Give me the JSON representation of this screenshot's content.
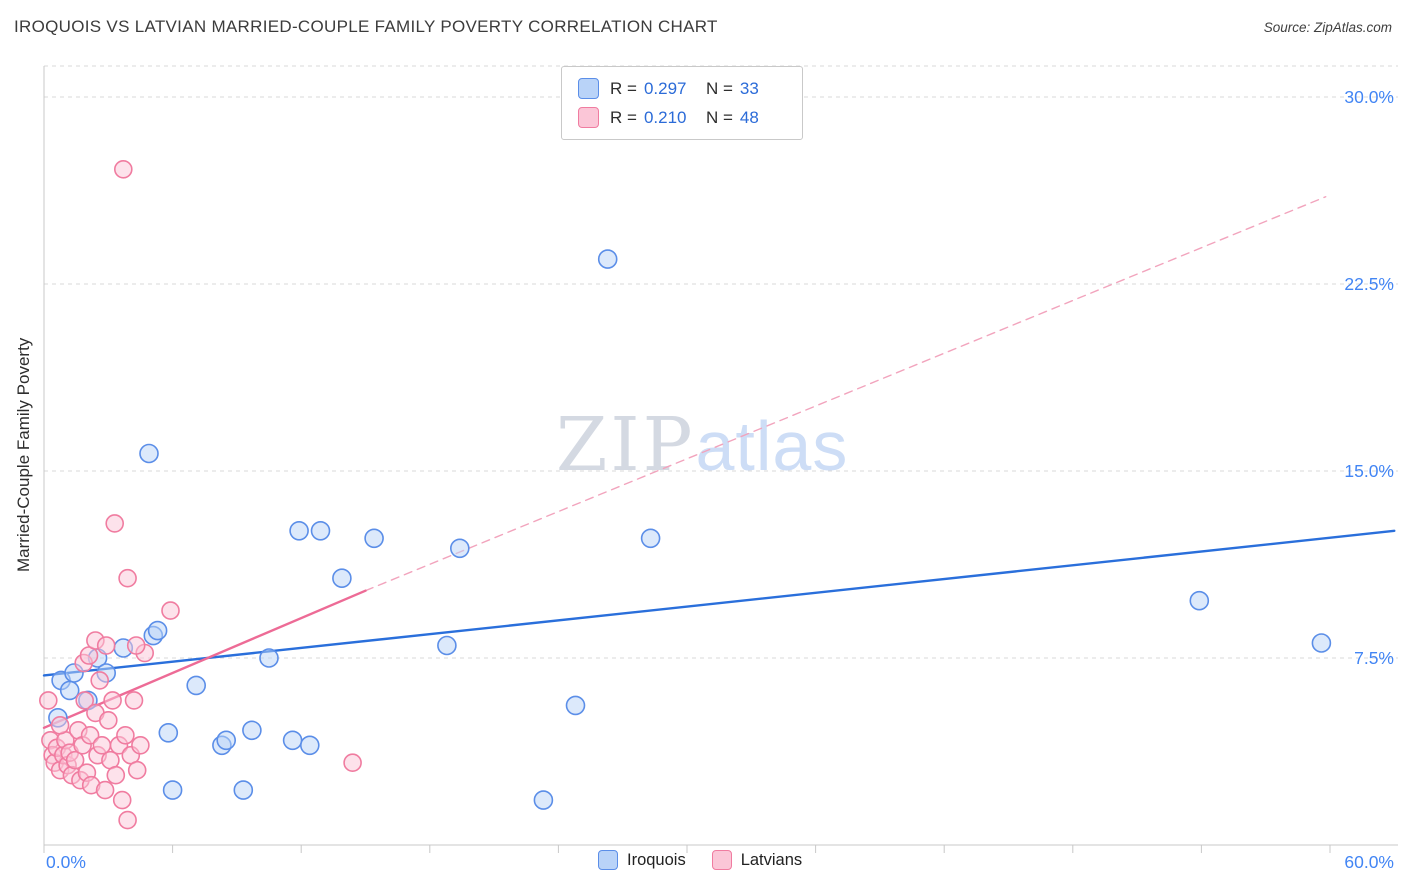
{
  "header": {
    "title": "IROQUOIS VS LATVIAN MARRIED-COUPLE FAMILY POVERTY CORRELATION CHART",
    "source": "Source: ZipAtlas.com"
  },
  "legend_box": {
    "rows": [
      {
        "r_label": "R =",
        "r_value": "0.297",
        "n_label": "N =",
        "n_value": "33"
      },
      {
        "r_label": "R =",
        "r_value": "0.210",
        "n_label": "N =",
        "n_value": "48"
      }
    ]
  },
  "watermark": {
    "part1": "ZIP",
    "part2": "atlas"
  },
  "bottom_legend": {
    "items": [
      {
        "label": "Iroquois"
      },
      {
        "label": "Latvians"
      }
    ]
  },
  "colors": {
    "accent_blue": "#4285f4",
    "value_blue": "#2b6bd8",
    "grid": "#d9d9d9",
    "axis": "#c8c8c8"
  },
  "chart_data": {
    "type": "scatter",
    "title": "IROQUOIS VS LATVIAN MARRIED-COUPLE FAMILY POVERTY CORRELATION CHART",
    "xlabel": "",
    "ylabel": "Married-Couple Family Poverty",
    "xlim": [
      0,
      63
    ],
    "ylim": [
      0,
      31.2
    ],
    "x_tick_step": 6,
    "grid": "dashed-horizontal",
    "legend_position": "bottom-center",
    "x_ticks": [
      {
        "value": 0,
        "label": "0.0%"
      },
      {
        "value": 60,
        "label": "60.0%"
      }
    ],
    "y_ticks": [
      {
        "value": 30,
        "label": "30.0%"
      },
      {
        "value": 22.5,
        "label": "22.5%"
      },
      {
        "value": 15,
        "label": "15.0%"
      },
      {
        "value": 7.5,
        "label": "7.5%"
      }
    ],
    "series": [
      {
        "name": "Iroquois",
        "R": 0.297,
        "N": 33,
        "fill": "#b9d3f8",
        "stroke": "#5b8ee8",
        "radius": 9,
        "points": [
          [
            0.65,
            5.1
          ],
          [
            0.8,
            6.6
          ],
          [
            1.2,
            6.2
          ],
          [
            1.4,
            6.9
          ],
          [
            2.05,
            5.8
          ],
          [
            2.5,
            7.5
          ],
          [
            2.9,
            6.9
          ],
          [
            3.7,
            7.9
          ],
          [
            4.9,
            15.7
          ],
          [
            5.1,
            8.4
          ],
          [
            5.3,
            8.6
          ],
          [
            5.8,
            4.5
          ],
          [
            6.0,
            2.2
          ],
          [
            7.1,
            6.4
          ],
          [
            8.3,
            4.0
          ],
          [
            8.5,
            4.2
          ],
          [
            9.3,
            2.2
          ],
          [
            9.7,
            4.6
          ],
          [
            10.5,
            7.5
          ],
          [
            11.6,
            4.2
          ],
          [
            11.9,
            12.6
          ],
          [
            12.4,
            4.0
          ],
          [
            12.9,
            12.6
          ],
          [
            13.9,
            10.7
          ],
          [
            15.4,
            12.3
          ],
          [
            18.8,
            8.0
          ],
          [
            19.4,
            11.9
          ],
          [
            23.3,
            1.8
          ],
          [
            24.8,
            5.6
          ],
          [
            26.3,
            23.5
          ],
          [
            28.3,
            12.3
          ],
          [
            53.9,
            9.8
          ],
          [
            59.6,
            8.1
          ]
        ],
        "trend": {
          "points": [
            [
              0,
              6.8
            ],
            [
              63,
              12.6
            ]
          ],
          "dashed": false,
          "color": "#2a6fdb"
        }
      },
      {
        "name": "Latvians",
        "R": 0.21,
        "N": 48,
        "fill": "#fbc6d7",
        "stroke": "#f07ca0",
        "radius": 8.5,
        "points": [
          [
            3.7,
            27.1
          ],
          [
            3.3,
            12.9
          ],
          [
            3.9,
            10.7
          ],
          [
            5.9,
            9.4
          ],
          [
            4.7,
            7.7
          ],
          [
            14.4,
            3.3
          ],
          [
            0.2,
            5.8
          ],
          [
            0.3,
            4.2
          ],
          [
            0.4,
            3.6
          ],
          [
            0.5,
            3.3
          ],
          [
            0.6,
            3.9
          ],
          [
            0.75,
            3.0
          ],
          [
            0.9,
            3.6
          ],
          [
            1.0,
            4.2
          ],
          [
            1.1,
            3.2
          ],
          [
            1.2,
            3.7
          ],
          [
            1.3,
            2.8
          ],
          [
            1.45,
            3.4
          ],
          [
            1.6,
            4.6
          ],
          [
            1.7,
            2.6
          ],
          [
            1.8,
            4.0
          ],
          [
            1.85,
            7.3
          ],
          [
            1.9,
            5.8
          ],
          [
            2.0,
            2.9
          ],
          [
            2.1,
            7.6
          ],
          [
            2.15,
            4.4
          ],
          [
            2.2,
            2.4
          ],
          [
            2.4,
            8.2
          ],
          [
            2.4,
            5.3
          ],
          [
            2.5,
            3.6
          ],
          [
            2.6,
            6.6
          ],
          [
            2.7,
            4.0
          ],
          [
            2.85,
            2.2
          ],
          [
            3.0,
            5.0
          ],
          [
            3.1,
            3.4
          ],
          [
            3.2,
            5.8
          ],
          [
            3.35,
            2.8
          ],
          [
            3.5,
            4.0
          ],
          [
            3.65,
            1.8
          ],
          [
            3.8,
            4.4
          ],
          [
            3.9,
            1.0
          ],
          [
            4.05,
            3.6
          ],
          [
            4.2,
            5.8
          ],
          [
            4.35,
            3.0
          ],
          [
            4.5,
            4.0
          ],
          [
            4.3,
            8.0
          ],
          [
            0.75,
            4.8
          ],
          [
            2.9,
            8.0
          ]
        ],
        "trend": {
          "points": [
            [
              0,
              4.7
            ],
            [
              15,
              10.2
            ]
          ],
          "dashed": false,
          "color": "#ed6b96"
        },
        "trend_extension": {
          "points": [
            [
              15,
              10.2
            ],
            [
              59.8,
              26.0
            ]
          ],
          "dashed": true,
          "color": "#f2a4bd"
        }
      }
    ]
  }
}
